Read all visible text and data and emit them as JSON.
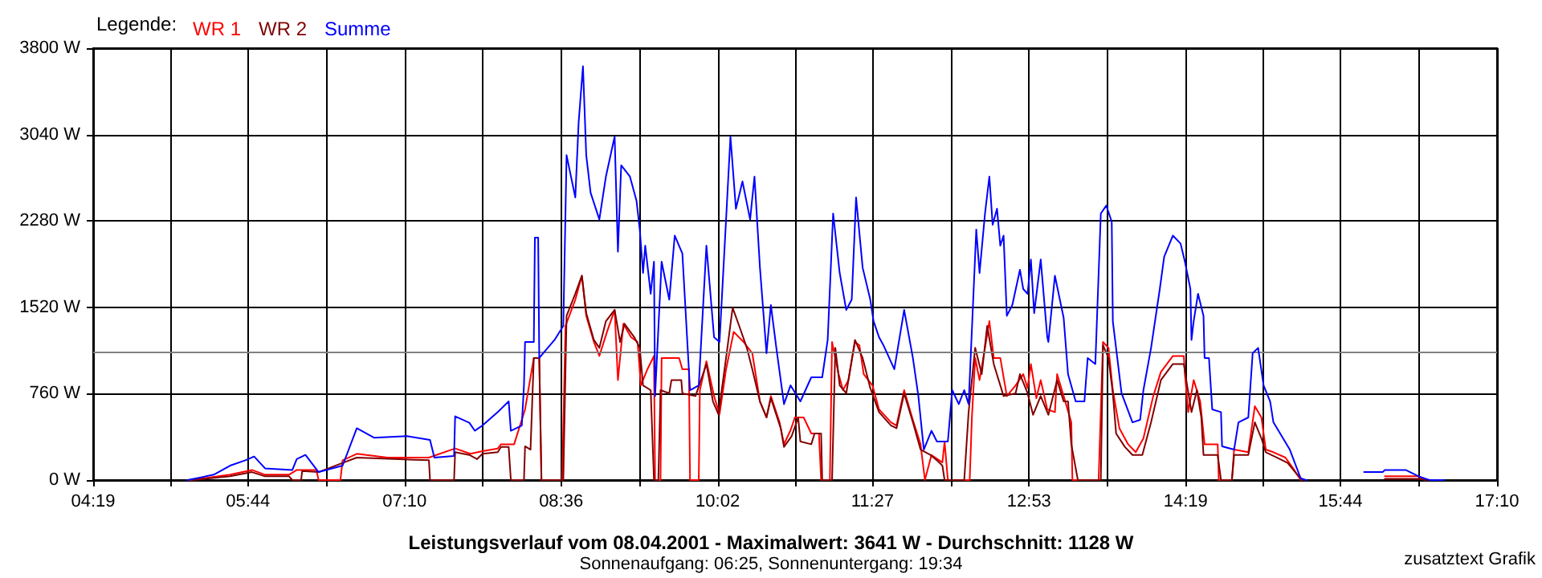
{
  "chart_data": {
    "type": "line",
    "title": "Leistungsverlauf vom 08.04.2001 - Maximalwert: 3641 W - Durchschnitt: 1128 W",
    "subtitle": "Sonnenaufgang: 06:25, Sonnenuntergang: 19:34",
    "annotations": [
      "zusatztext Grafik"
    ],
    "legend_title": "Legende:",
    "legend": "top left",
    "grid": true,
    "marker": "none",
    "line_style": "solid",
    "xlim": [
      4.3167,
      17.1667
    ],
    "xticks": [
      {
        "value": 4.3167,
        "label": "04:19"
      },
      {
        "value": 5.025,
        "label": null
      },
      {
        "value": 5.7333,
        "label": "05:44"
      },
      {
        "value": 6.45,
        "label": null
      },
      {
        "value": 7.1667,
        "label": "07:10"
      },
      {
        "value": 7.8833,
        "label": null
      },
      {
        "value": 8.6,
        "label": "08:36"
      },
      {
        "value": 9.3167,
        "label": null
      },
      {
        "value": 10.0333,
        "label": "10:02"
      },
      {
        "value": 10.7417,
        "label": null
      },
      {
        "value": 11.45,
        "label": "11:27"
      },
      {
        "value": 12.1667,
        "label": null
      },
      {
        "value": 12.8833,
        "label": "12:53"
      },
      {
        "value": 13.6,
        "label": null
      },
      {
        "value": 14.3167,
        "label": "14:19"
      },
      {
        "value": 15.025,
        "label": null
      },
      {
        "value": 15.7333,
        "label": "15:44"
      },
      {
        "value": 16.45,
        "label": null
      },
      {
        "value": 17.1667,
        "label": "17:10"
      }
    ],
    "ylim": [
      0,
      3800
    ],
    "yticks": [
      {
        "value": 0,
        "label": "0 W"
      },
      {
        "value": 760,
        "label": "760 W"
      },
      {
        "value": 1520,
        "label": "1520 W"
      },
      {
        "value": 2280,
        "label": "2280 W"
      },
      {
        "value": 3040,
        "label": "3040 W"
      },
      {
        "value": 3800,
        "label": "3800 W"
      }
    ],
    "ref_lines": [
      {
        "axis": "y",
        "value": 1128,
        "color": "#808080"
      }
    ],
    "series": [
      {
        "name": "WR 1",
        "color": "#ff0000",
        "x": [
          5.2,
          5.57,
          5.77,
          5.89,
          6.11,
          6.18,
          6.36,
          6.38,
          6.58,
          6.6,
          6.73,
          7.01,
          7.39,
          7.63,
          7.77,
          7.88,
          8.02,
          8.05,
          8.17,
          8.27,
          8.35,
          8.4,
          8.42,
          8.61,
          8.64,
          8.73,
          8.79,
          8.83,
          8.9,
          8.95,
          9.02,
          9.09,
          9.12,
          9.17,
          9.24,
          9.3,
          9.33,
          9.39,
          9.45,
          9.46,
          9.51,
          9.52,
          9.68,
          9.71,
          9.77,
          9.78,
          9.86,
          9.87,
          9.93,
          10.0,
          10.05,
          10.11,
          10.18,
          10.27,
          10.35,
          10.42,
          10.48,
          10.52,
          10.6,
          10.64,
          10.7,
          10.74,
          10.82,
          10.89,
          10.96,
          10.98,
          11.06,
          11.08,
          11.14,
          11.18,
          11.23,
          11.29,
          11.33,
          11.37,
          11.45,
          11.51,
          11.62,
          11.67,
          11.74,
          11.82,
          11.89,
          11.93,
          11.99,
          12.09,
          12.11,
          12.14,
          12.34,
          12.36,
          12.39,
          12.43,
          12.48,
          12.52,
          12.56,
          12.62,
          12.68,
          12.76,
          12.83,
          12.87,
          12.9,
          12.95,
          12.99,
          13.05,
          13.12,
          13.14,
          13.2,
          13.27,
          13.28,
          13.52,
          13.56,
          13.61,
          13.65,
          13.71,
          13.79,
          13.86,
          13.93,
          14.02,
          14.09,
          14.2,
          14.3,
          14.31,
          14.34,
          14.39,
          14.45,
          14.49,
          14.61,
          14.62,
          14.74,
          14.76,
          14.89,
          14.95,
          15.01,
          15.05,
          15.12,
          15.23,
          15.3,
          15.37,
          15.7,
          16.14,
          16.45,
          16.51
        ],
        "values": [
          0,
          47,
          89,
          47,
          47,
          89,
          89,
          0,
          0,
          174,
          231,
          198,
          198,
          278,
          231,
          254,
          278,
          315,
          315,
          622,
          1074,
          1074,
          0,
          0,
          1356,
          1587,
          1798,
          1445,
          1215,
          1092,
          1304,
          1497,
          880,
          1375,
          1257,
          1215,
          833,
          975,
          1092,
          0,
          0,
          1074,
          1074,
          975,
          975,
          0,
          0,
          791,
          1045,
          739,
          579,
          975,
          1304,
          1215,
          1116,
          692,
          551,
          739,
          508,
          315,
          438,
          551,
          551,
          410,
          410,
          0,
          0,
          1215,
          932,
          791,
          880,
          1215,
          1187,
          932,
          833,
          622,
          508,
          480,
          791,
          527,
          315,
          0,
          221,
          155,
          339,
          0,
          0,
          551,
          1074,
          880,
          1163,
          1398,
          1074,
          1074,
          739,
          833,
          932,
          809,
          1021,
          720,
          880,
          622,
          598,
          932,
          739,
          508,
          0,
          0,
          1215,
          1163,
          791,
          456,
          315,
          245,
          367,
          739,
          951,
          1092,
          1092,
          932,
          598,
          880,
          692,
          315,
          315,
          0,
          0,
          268,
          245,
          650,
          551,
          268,
          245,
          198,
          103,
          0,
          null,
          33,
          33,
          0
        ]
      },
      {
        "name": "WR 2",
        "color": "#800000",
        "x": [
          5.23,
          5.57,
          5.77,
          5.89,
          6.11,
          6.14,
          6.22,
          6.23,
          6.38,
          6.6,
          6.73,
          7.39,
          7.4,
          7.62,
          7.63,
          7.76,
          7.83,
          7.88,
          8.02,
          8.05,
          8.12,
          8.14,
          8.26,
          8.27,
          8.32,
          8.35,
          8.4,
          8.42,
          8.62,
          8.65,
          8.73,
          8.79,
          8.83,
          8.9,
          8.95,
          9.01,
          9.09,
          9.14,
          9.18,
          9.27,
          9.32,
          9.35,
          9.42,
          9.45,
          9.49,
          9.51,
          9.59,
          9.61,
          9.7,
          9.71,
          9.83,
          9.93,
          9.99,
          10.04,
          10.11,
          10.17,
          10.23,
          10.3,
          10.35,
          10.42,
          10.48,
          10.52,
          10.61,
          10.64,
          10.71,
          10.77,
          10.79,
          10.89,
          10.92,
          10.98,
          10.99,
          11.08,
          11.11,
          11.15,
          11.21,
          11.29,
          11.36,
          11.43,
          11.51,
          11.62,
          11.67,
          11.74,
          11.82,
          11.89,
          11.98,
          12.04,
          12.09,
          12.11,
          12.29,
          12.33,
          12.39,
          12.45,
          12.5,
          12.56,
          12.65,
          12.76,
          12.8,
          12.87,
          12.92,
          12.99,
          13.06,
          13.14,
          13.2,
          13.24,
          13.27,
          13.33,
          13.54,
          13.56,
          13.61,
          13.65,
          13.68,
          13.76,
          13.83,
          13.92,
          14.0,
          14.09,
          14.2,
          14.3,
          14.33,
          14.37,
          14.42,
          14.46,
          14.48,
          14.61,
          14.64,
          14.74,
          14.76,
          14.89,
          14.95,
          15.01,
          15.05,
          15.15,
          15.25,
          15.33,
          15.39,
          15.7,
          16.14,
          16.45,
          16.52
        ],
        "values": [
          0,
          33,
          70,
          33,
          33,
          0,
          0,
          80,
          70,
          151,
          198,
          174,
          0,
          0,
          245,
          221,
          184,
          231,
          245,
          292,
          292,
          0,
          0,
          297,
          268,
          1074,
          1074,
          0,
          0,
          1445,
          1639,
          1798,
          1469,
          1233,
          1163,
          1398,
          1497,
          1215,
          1375,
          1257,
          1163,
          833,
          791,
          0,
          0,
          791,
          763,
          880,
          880,
          763,
          739,
          1021,
          692,
          579,
          1074,
          1516,
          1356,
          1163,
          975,
          692,
          551,
          720,
          456,
          292,
          386,
          551,
          339,
          315,
          410,
          410,
          0,
          0,
          1163,
          833,
          763,
          1233,
          1074,
          809,
          598,
          480,
          456,
          763,
          508,
          268,
          221,
          174,
          127,
          0,
          0,
          598,
          1163,
          932,
          1356,
          1021,
          739,
          763,
          932,
          763,
          574,
          739,
          574,
          880,
          692,
          692,
          315,
          0,
          0,
          1187,
          1074,
          763,
          410,
          292,
          221,
          221,
          508,
          880,
          1021,
          1021,
          833,
          598,
          791,
          551,
          221,
          221,
          0,
          0,
          221,
          221,
          508,
          367,
          245,
          198,
          151,
          57,
          0,
          null,
          10,
          10,
          0
        ]
      },
      {
        "name": "Summe",
        "color": "#0000ff",
        "x": [
          5.18,
          5.42,
          5.57,
          5.71,
          5.79,
          5.89,
          6.14,
          6.18,
          6.26,
          6.38,
          6.6,
          6.73,
          6.89,
          7.19,
          7.4,
          7.44,
          7.62,
          7.63,
          7.76,
          7.81,
          7.88,
          8.02,
          8.12,
          8.14,
          8.24,
          8.26,
          8.27,
          8.35,
          8.36,
          8.39,
          8.4,
          8.46,
          8.54,
          8.62,
          8.65,
          8.73,
          8.76,
          8.8,
          8.83,
          8.87,
          8.95,
          9.01,
          9.09,
          9.12,
          9.15,
          9.23,
          9.29,
          9.32,
          9.35,
          9.37,
          9.42,
          9.45,
          9.46,
          9.52,
          9.59,
          9.64,
          9.71,
          9.78,
          9.86,
          9.93,
          10.0,
          10.05,
          10.11,
          10.15,
          10.2,
          10.26,
          10.33,
          10.37,
          10.42,
          10.48,
          10.52,
          10.57,
          10.64,
          10.7,
          10.79,
          10.89,
          10.99,
          11.04,
          11.09,
          11.15,
          11.21,
          11.26,
          11.3,
          11.36,
          11.43,
          11.46,
          11.51,
          11.55,
          11.65,
          11.74,
          11.82,
          11.87,
          11.92,
          11.99,
          12.04,
          12.14,
          12.18,
          12.24,
          12.29,
          12.33,
          12.37,
          12.4,
          12.43,
          12.48,
          12.52,
          12.55,
          12.59,
          12.62,
          12.65,
          12.68,
          12.73,
          12.8,
          12.83,
          12.87,
          12.9,
          12.93,
          12.99,
          13.05,
          13.06,
          13.12,
          13.2,
          13.24,
          13.31,
          13.39,
          13.42,
          13.49,
          13.54,
          13.59,
          13.64,
          13.65,
          13.73,
          13.83,
          13.9,
          13.93,
          14.0,
          14.08,
          14.12,
          14.2,
          14.27,
          14.31,
          14.36,
          14.37,
          14.39,
          14.43,
          14.48,
          14.49,
          14.53,
          14.56,
          14.64,
          14.65,
          14.76,
          14.8,
          14.89,
          14.93,
          14.98,
          15.03,
          15.09,
          15.12,
          15.27,
          15.37,
          15.42,
          15.7,
          15.95,
          16.12,
          16.14,
          16.33,
          16.45,
          16.55,
          16.68
        ],
        "values": [
          0,
          47,
          127,
          174,
          207,
          103,
          89,
          184,
          221,
          70,
          127,
          456,
          372,
          386,
          353,
          198,
          212,
          561,
          504,
          434,
          480,
          598,
          692,
          434,
          480,
          833,
          1215,
          1215,
          2133,
          2133,
          1074,
          1144,
          1233,
          1356,
          2858,
          2486,
          3140,
          3641,
          2858,
          2528,
          2293,
          2670,
          3023,
          2010,
          2769,
          2670,
          2458,
          2204,
          1822,
          2062,
          1639,
          1921,
          739,
          1921,
          1587,
          2151,
          1992,
          791,
          833,
          2062,
          1257,
          1215,
          2293,
          3023,
          2387,
          2627,
          2293,
          2670,
          1869,
          1116,
          1540,
          1163,
          668,
          833,
          692,
          904,
          904,
          1233,
          2345,
          1822,
          1497,
          1587,
          2486,
          1869,
          1587,
          1398,
          1257,
          1187,
          975,
          1497,
          1074,
          739,
          268,
          434,
          339,
          339,
          791,
          668,
          791,
          668,
          1540,
          2204,
          1822,
          2345,
          2670,
          2246,
          2387,
          2062,
          2151,
          1445,
          1540,
          1850,
          1681,
          1639,
          1940,
          1469,
          1940,
          1257,
          1215,
          1798,
          1427,
          932,
          692,
          692,
          1074,
          1021,
          2345,
          2415,
          2274,
          1398,
          763,
          508,
          530,
          791,
          1163,
          1681,
          1964,
          2151,
          2081,
          1921,
          1681,
          1233,
          1398,
          1639,
          1445,
          1074,
          1074,
          622,
          598,
          297,
          268,
          508,
          551,
          1116,
          1163,
          833,
          692,
          508,
          268,
          14,
          0,
          null,
          71,
          71,
          89,
          89,
          33,
          0,
          0
        ]
      }
    ]
  }
}
